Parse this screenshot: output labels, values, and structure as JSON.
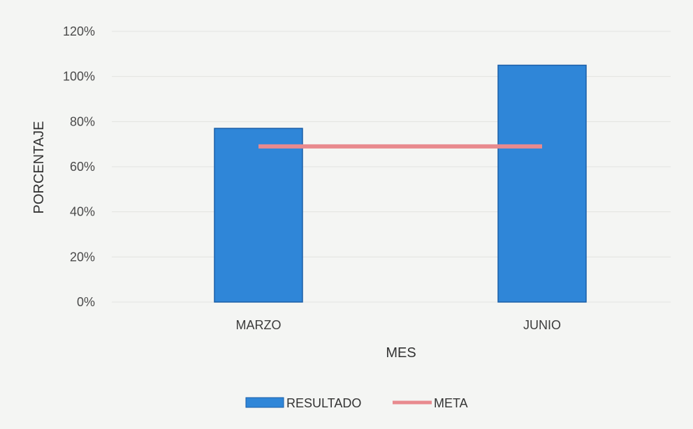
{
  "chart_data": {
    "type": "bar",
    "categories": [
      "MARZO",
      "JUNIO"
    ],
    "series": [
      {
        "name": "RESULTADO",
        "kind": "bar",
        "values": [
          77,
          105
        ]
      },
      {
        "name": "META",
        "kind": "line",
        "values": [
          69,
          69
        ]
      }
    ],
    "xlabel": "MES",
    "ylabel": "PORCENTAJE",
    "ylim": [
      0,
      120
    ],
    "yticks": [
      "0%",
      "20%",
      "40%",
      "60%",
      "80%",
      "100%",
      "120%"
    ],
    "grid": true,
    "legend": "bottom",
    "colors": {
      "bar": "#2f86d8",
      "bar_edge": "#1a5ea8",
      "line": "#e88a8e",
      "grid": "#e2e4e0"
    }
  }
}
